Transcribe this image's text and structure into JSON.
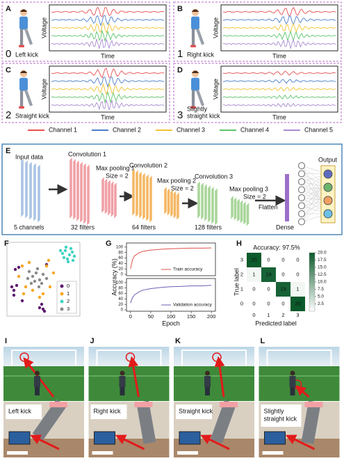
{
  "signal_panels": [
    {
      "letter": "A",
      "number": "0",
      "label": [
        "Left kick"
      ],
      "y_label": "Voltage",
      "x_label": "Time"
    },
    {
      "letter": "B",
      "number": "1",
      "label": [
        "Right kick"
      ],
      "y_label": "Voltage",
      "x_label": "Time"
    },
    {
      "letter": "C",
      "number": "2",
      "label": [
        "Straight kick"
      ],
      "y_label": "Voltage",
      "x_label": "Time"
    },
    {
      "letter": "D",
      "number": "3",
      "label": [
        "Slightly",
        "straight kick"
      ],
      "y_label": "Voltage",
      "x_label": "Time"
    }
  ],
  "channel_legend": [
    {
      "name": "Channel 1",
      "color": "#e8514f"
    },
    {
      "name": "Channel 2",
      "color": "#4a7fc9"
    },
    {
      "name": "Channel 3",
      "color": "#f2c230"
    },
    {
      "name": "Channel 4",
      "color": "#5cc46a"
    },
    {
      "name": "Channel 5",
      "color": "#a88bd0"
    }
  ],
  "cnn": {
    "letter": "E",
    "input": {
      "title": "Input data",
      "caption": "5 channels"
    },
    "conv1": {
      "title": "Convolution 1",
      "caption": "32 filters"
    },
    "pool1": {
      "title": "Max pooling 1",
      "size": "Size = 2"
    },
    "conv2": {
      "title": "Convolution 2",
      "caption": "64 filters"
    },
    "pool2": {
      "title": "Max pooling 2",
      "size": "Size = 2"
    },
    "conv3": {
      "title": "Convolution 3",
      "caption": "128 filters"
    },
    "pool3": {
      "title": "Max pooling 3",
      "size": "Size = 2"
    },
    "flatten": "Flatten",
    "dense": "Dense",
    "output": "Output"
  },
  "tsne": {
    "letter": "F",
    "xlim": [
      0,
      100
    ],
    "ylim": [
      0,
      100
    ],
    "classes": [
      {
        "name": "0",
        "color": "#5c1a6e",
        "points": [
          [
            5,
            40
          ],
          [
            8,
            35
          ],
          [
            12,
            42
          ],
          [
            10,
            65
          ],
          [
            15,
            68
          ],
          [
            45,
            10
          ],
          [
            50,
            8
          ],
          [
            48,
            15
          ],
          [
            20,
            20
          ],
          [
            55,
            72
          ],
          [
            8,
            28
          ],
          [
            52,
            5
          ]
        ]
      },
      {
        "name": "1",
        "color": "#f5a623",
        "points": [
          [
            20,
            70
          ],
          [
            25,
            40
          ],
          [
            55,
            70
          ],
          [
            60,
            40
          ],
          [
            15,
            55
          ],
          [
            50,
            30
          ],
          [
            65,
            60
          ],
          [
            30,
            75
          ],
          [
            22,
            30
          ],
          [
            45,
            25
          ],
          [
            58,
            78
          ],
          [
            35,
            35
          ]
        ]
      },
      {
        "name": "2",
        "color": "#3fd3c2",
        "points": [
          [
            78,
            88
          ],
          [
            82,
            92
          ],
          [
            88,
            86
          ],
          [
            92,
            90
          ],
          [
            85,
            80
          ],
          [
            80,
            82
          ],
          [
            90,
            95
          ],
          [
            95,
            84
          ],
          [
            75,
            92
          ],
          [
            86,
            76
          ],
          [
            93,
            78
          ],
          [
            83,
            97
          ]
        ]
      },
      {
        "name": "3",
        "color": "#8a8a8a",
        "points": [
          [
            35,
            55
          ],
          [
            40,
            60
          ],
          [
            45,
            50
          ],
          [
            38,
            48
          ],
          [
            50,
            58
          ],
          [
            30,
            62
          ],
          [
            42,
            66
          ],
          [
            48,
            45
          ],
          [
            33,
            45
          ],
          [
            55,
            52
          ],
          [
            28,
            52
          ],
          [
            44,
            40
          ]
        ]
      }
    ]
  },
  "training": {
    "letter": "G",
    "y_label": "Accuracy (%)",
    "x_label": "Epoch",
    "xlim": [
      -10,
      210
    ],
    "xticks": [
      0,
      50,
      100,
      150,
      200
    ],
    "ylim": [
      -5,
      115
    ],
    "yticks": [
      0,
      20,
      40,
      60,
      80,
      100
    ],
    "curves": [
      {
        "name": "Train accuracy",
        "color": "#e0524f",
        "x": [
          0,
          5,
          10,
          20,
          30,
          50,
          75,
          100,
          125,
          150,
          175,
          200
        ],
        "values": [
          20,
          55,
          68,
          78,
          84,
          89,
          92,
          94,
          95,
          96,
          96,
          97
        ]
      },
      {
        "name": "Validation accuracy",
        "color": "#6a5fb0",
        "x": [
          0,
          5,
          10,
          20,
          30,
          50,
          75,
          100,
          125,
          150,
          175,
          200
        ],
        "values": [
          25,
          45,
          55,
          65,
          72,
          78,
          82,
          85,
          86,
          88,
          88,
          90
        ]
      }
    ]
  },
  "confusion": {
    "letter": "H",
    "title": "Accuracy: 97.5%",
    "x_label": "Predicted label",
    "y_label": "True label",
    "row_labels": [
      "3",
      "2",
      "1",
      "0"
    ],
    "col_labels": [
      "0",
      "1",
      "2",
      "3"
    ],
    "matrix": [
      [
        20,
        0,
        0,
        0
      ],
      [
        1,
        19,
        0,
        0
      ],
      [
        0,
        0,
        19,
        1
      ],
      [
        0,
        0,
        0,
        20
      ]
    ],
    "colorbar_range": [
      0,
      20
    ],
    "colorbar_ticks": [
      2.5,
      {
        "value": 5,
        "label": "5.0"
      },
      7.5,
      {
        "value": 10,
        "label": "10.0"
      },
      12.5,
      {
        "value": 15,
        "label": "15.0"
      },
      17.5,
      {
        "value": 20,
        "label": "20.0"
      }
    ]
  },
  "photos": [
    {
      "letter": "I",
      "caption": [
        "Left kick"
      ]
    },
    {
      "letter": "J",
      "caption": [
        "Right kick"
      ]
    },
    {
      "letter": "K",
      "caption": [
        "Straight kick"
      ]
    },
    {
      "letter": "L",
      "caption": [
        "Slightly",
        "straight kick"
      ]
    }
  ]
}
